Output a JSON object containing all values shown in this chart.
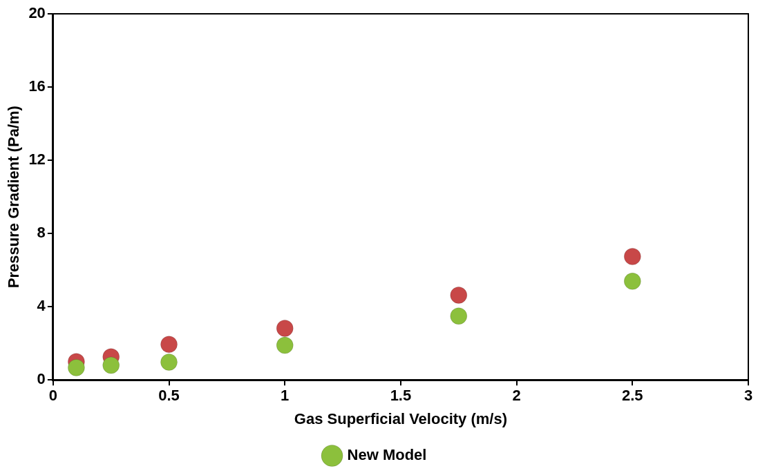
{
  "chart_data": {
    "type": "scatter",
    "xlabel": "Gas Superficial Velocity (m/s)",
    "ylabel": "Pressure Gradient (Pa/m)",
    "x": [
      0.1,
      0.25,
      0.5,
      1,
      1.75,
      2.5
    ],
    "series": [
      {
        "color": "#c84848",
        "values": [
          1.0,
          1.26,
          1.94,
          2.82,
          4.63,
          6.74
        ]
      },
      {
        "name": "New Model",
        "color": "#8cc03c",
        "values": [
          0.67,
          0.8,
          0.97,
          1.89,
          3.49,
          5.39
        ]
      }
    ],
    "xlim": [
      0,
      3
    ],
    "xticks": [
      0,
      0.5,
      1,
      1.5,
      2,
      2.5,
      3
    ],
    "ylim": [
      0,
      20
    ],
    "yticks": [
      0,
      4,
      8,
      12,
      16,
      20
    ],
    "grid": false,
    "legend": "bottom",
    "marker": "circle"
  }
}
